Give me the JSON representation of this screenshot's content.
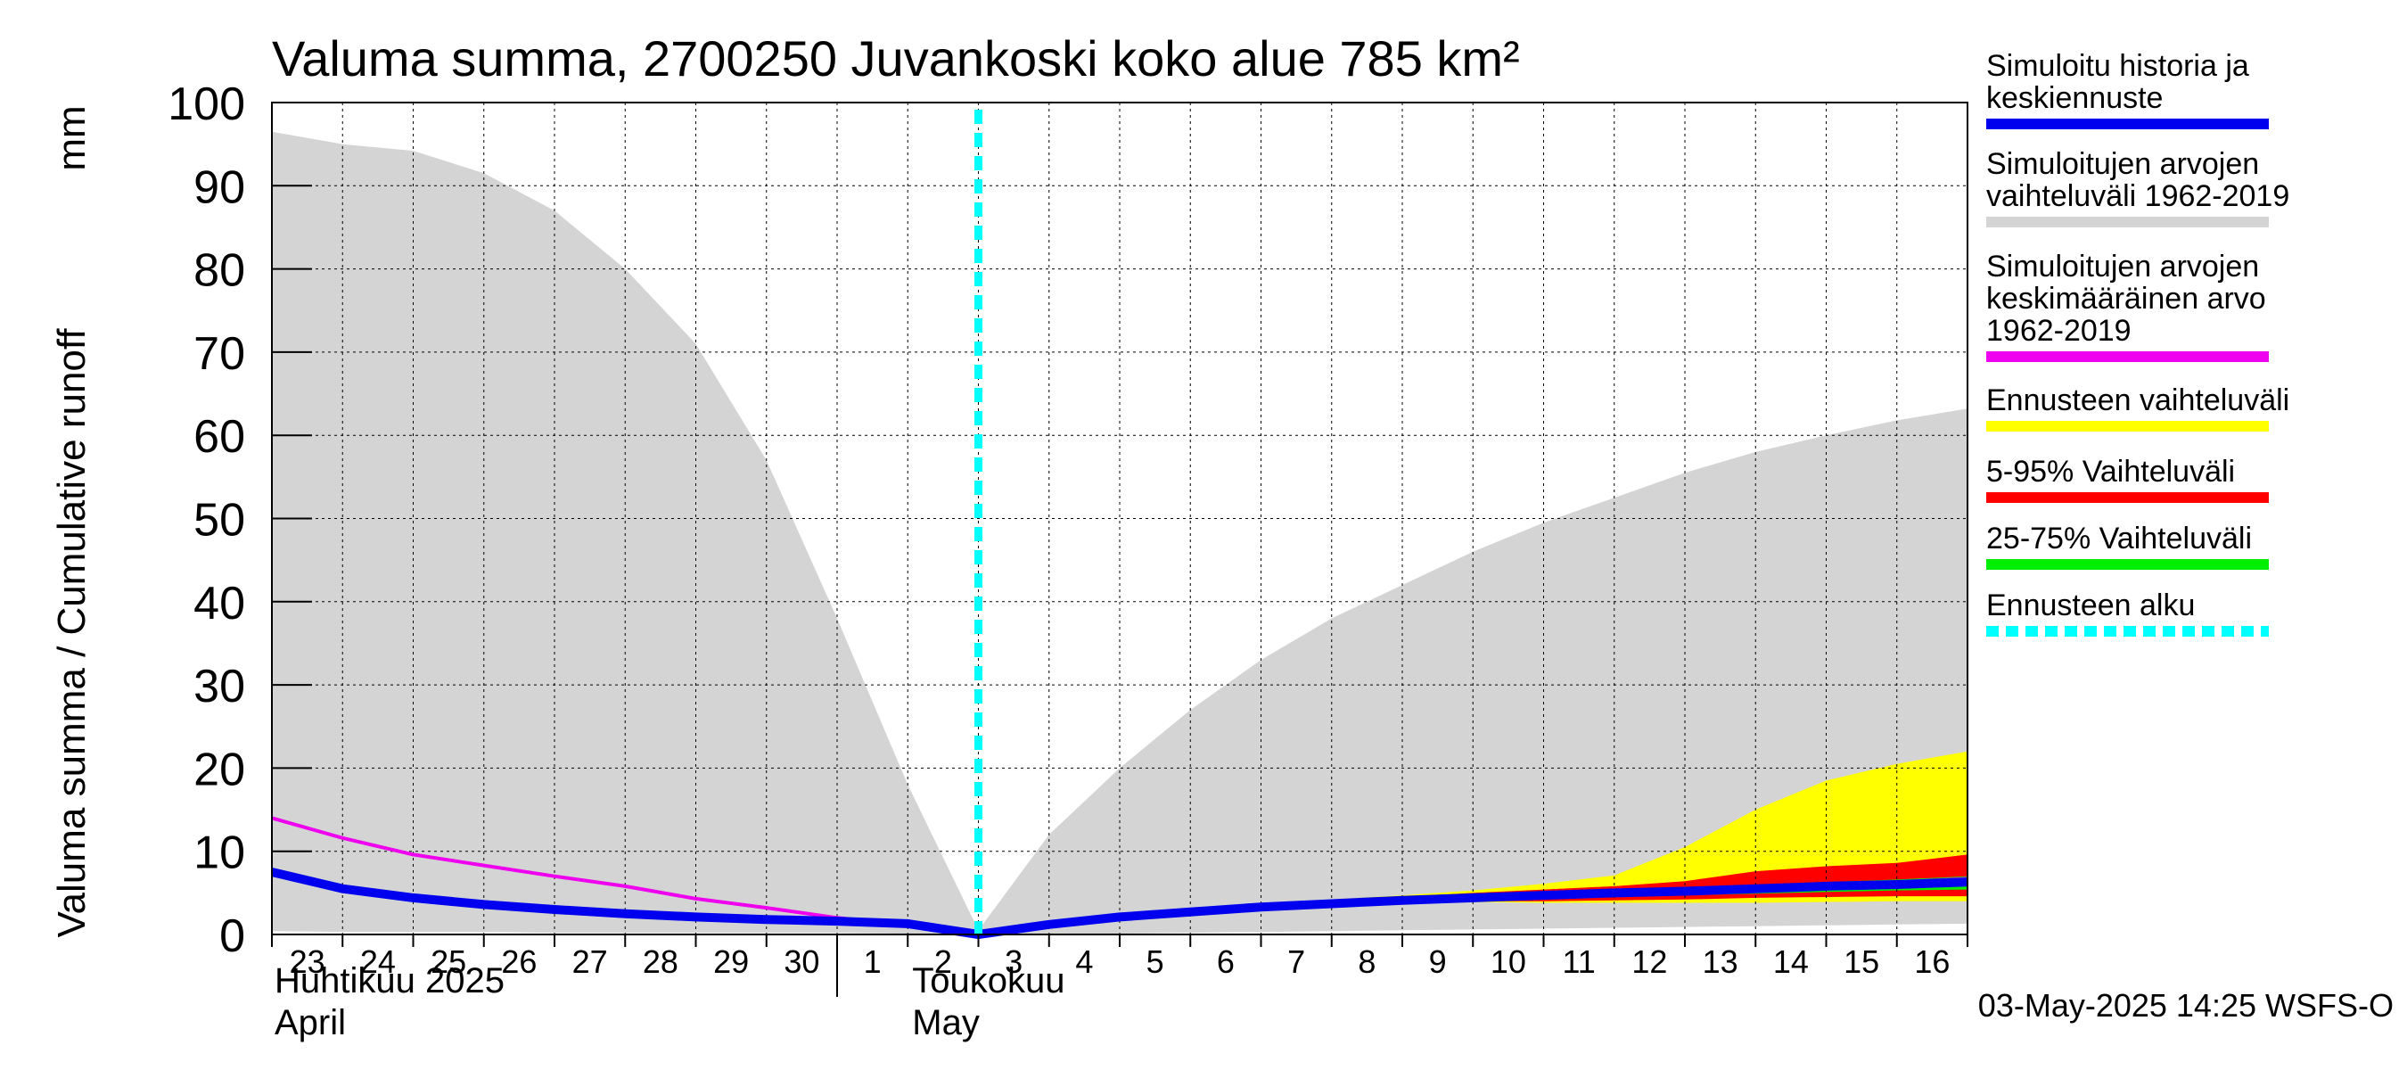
{
  "chart_data": {
    "type": "area",
    "title": "Valuma summa, 2700250 Juvankoski koko alue 785 km²",
    "ylabel": "Valuma summa / Cumulative runoff",
    "yunit": "mm",
    "ylim": [
      0,
      100
    ],
    "yticks": [
      "0",
      "10",
      "20",
      "30",
      "40",
      "50",
      "60",
      "70",
      "80",
      "90",
      "100"
    ],
    "x_start": "2025-04-23",
    "x_end": "2025-05-17",
    "xtick_labels": [
      "23",
      "24",
      "25",
      "26",
      "27",
      "28",
      "29",
      "30",
      "1",
      "2",
      "3",
      "4",
      "5",
      "6",
      "7",
      "8",
      "9",
      "10",
      "11",
      "12",
      "13",
      "14",
      "15",
      "16"
    ],
    "month_labels": [
      {
        "fi": "Huhtikuu  2025",
        "en": "April"
      },
      {
        "fi": "Toukokuu",
        "en": "May"
      }
    ],
    "forecast_start": "2025-05-03",
    "grid": true,
    "legend_position": "right",
    "timestamp": "03-May-2025 14:25 WSFS-O",
    "legend": [
      {
        "label": "Simuloitu historia ja\nkeskiennuste",
        "color": "#0000ee",
        "style": "solid"
      },
      {
        "label": "Simuloitujen arvojen\nvaihteluväli 1962-2019",
        "color": "#d4d4d4",
        "style": "solid"
      },
      {
        "label": "Simuloitujen arvojen\nkeskimääräinen arvo\n   1962-2019",
        "color": "#ee00ee",
        "style": "solid"
      },
      {
        "label": "Ennusteen vaihteluväli",
        "color": "#ffff00",
        "style": "solid"
      },
      {
        "label": "5-95% Vaihteluväli",
        "color": "#ff0000",
        "style": "solid"
      },
      {
        "label": "25-75% Vaihteluväli",
        "color": "#00ee00",
        "style": "solid"
      },
      {
        "label": "Ennusteen alku",
        "color": "#00ffff",
        "style": "dashed"
      }
    ],
    "series": [
      {
        "name": "Simuloitujen arvojen vaihteluväli 1962-2019",
        "kind": "band",
        "color": "#d4d4d4",
        "x": [
          "2025-04-23",
          "2025-04-24",
          "2025-04-25",
          "2025-04-26",
          "2025-04-27",
          "2025-04-28",
          "2025-04-29",
          "2025-04-30",
          "2025-05-01",
          "2025-05-02",
          "2025-05-03",
          "2025-05-04",
          "2025-05-05",
          "2025-05-06",
          "2025-05-07",
          "2025-05-08",
          "2025-05-09",
          "2025-05-10",
          "2025-05-11",
          "2025-05-12",
          "2025-05-13",
          "2025-05-14",
          "2025-05-15",
          "2025-05-16",
          "2025-05-17"
        ],
        "upper": [
          96.5,
          95,
          94.2,
          91.5,
          87,
          80,
          71,
          57,
          38,
          18,
          0.5,
          12,
          20,
          27,
          33,
          38,
          42,
          46,
          49.5,
          52.5,
          55.5,
          58,
          60,
          61.8,
          63.2
        ],
        "lower": [
          0.4,
          0.3,
          0.3,
          0.3,
          0.2,
          0.2,
          0.2,
          0.2,
          0.2,
          0.1,
          0.0,
          0.0,
          0.1,
          0.2,
          0.3,
          0.4,
          0.5,
          0.6,
          0.7,
          0.8,
          0.9,
          1.0,
          1.1,
          1.2,
          1.3
        ]
      },
      {
        "name": "Ennusteen vaihteluväli",
        "kind": "band",
        "color": "#ffff00",
        "x": [
          "2025-05-03",
          "2025-05-04",
          "2025-05-05",
          "2025-05-06",
          "2025-05-07",
          "2025-05-08",
          "2025-05-09",
          "2025-05-10",
          "2025-05-11",
          "2025-05-12",
          "2025-05-13",
          "2025-05-14",
          "2025-05-15",
          "2025-05-16",
          "2025-05-17"
        ],
        "upper": [
          0.0,
          1.4,
          2.4,
          3.0,
          3.7,
          4.2,
          4.7,
          5.3,
          6.1,
          7.1,
          10.5,
          15.0,
          18.5,
          20.5,
          22.0
        ],
        "lower": [
          0.0,
          1.1,
          1.8,
          2.4,
          3.0,
          3.4,
          3.8,
          3.9,
          3.8,
          3.8,
          3.8,
          3.8,
          3.9,
          4.0,
          4.0
        ]
      },
      {
        "name": "5-95% Vaihteluväli",
        "kind": "band",
        "color": "#ff0000",
        "x": [
          "2025-05-03",
          "2025-05-04",
          "2025-05-05",
          "2025-05-06",
          "2025-05-07",
          "2025-05-08",
          "2025-05-09",
          "2025-05-10",
          "2025-05-11",
          "2025-05-12",
          "2025-05-13",
          "2025-05-14",
          "2025-05-15",
          "2025-05-16",
          "2025-05-17"
        ],
        "upper": [
          0.0,
          1.3,
          2.3,
          2.9,
          3.5,
          4.0,
          4.5,
          5.0,
          5.4,
          5.8,
          6.4,
          7.6,
          8.2,
          8.6,
          9.6
        ],
        "lower": [
          0.0,
          1.1,
          1.9,
          2.5,
          3.1,
          3.5,
          3.9,
          4.0,
          4.0,
          4.1,
          4.2,
          4.4,
          4.5,
          4.6,
          4.6
        ]
      },
      {
        "name": "25-75% Vaihteluväli",
        "kind": "band",
        "color": "#00ee00",
        "x": [
          "2025-05-03",
          "2025-05-04",
          "2025-05-05",
          "2025-05-06",
          "2025-05-07",
          "2025-05-08",
          "2025-05-09",
          "2025-05-10",
          "2025-05-11",
          "2025-05-12",
          "2025-05-13",
          "2025-05-14",
          "2025-05-15",
          "2025-05-16",
          "2025-05-17"
        ],
        "upper": [
          0.0,
          1.2,
          2.2,
          2.8,
          3.4,
          3.8,
          4.3,
          4.7,
          5.0,
          5.3,
          5.6,
          6.0,
          6.3,
          6.6,
          7.0
        ],
        "lower": [
          0.0,
          1.1,
          2.0,
          2.6,
          3.2,
          3.6,
          4.0,
          4.2,
          4.3,
          4.5,
          4.7,
          4.9,
          5.1,
          5.3,
          5.4
        ]
      },
      {
        "name": "Simuloitujen arvojen keskimääräinen arvo 1962-2019",
        "kind": "line",
        "color": "#ee00ee",
        "x": [
          "2025-04-23",
          "2025-04-24",
          "2025-04-25",
          "2025-04-26",
          "2025-04-27",
          "2025-04-28",
          "2025-04-29",
          "2025-04-30",
          "2025-05-01",
          "2025-05-02",
          "2025-05-03",
          "2025-05-04",
          "2025-05-05",
          "2025-05-06",
          "2025-05-07",
          "2025-05-08",
          "2025-05-09",
          "2025-05-10",
          "2025-05-11",
          "2025-05-12",
          "2025-05-13",
          "2025-05-14",
          "2025-05-15",
          "2025-05-16",
          "2025-05-17"
        ],
        "values": [
          14.0,
          11.6,
          9.6,
          8.3,
          7.0,
          5.8,
          4.3,
          3.2,
          2.0,
          1.1,
          0.0,
          1.0,
          1.9,
          2.5,
          3.1,
          3.5,
          3.9,
          4.2,
          4.5,
          4.8,
          5.2,
          5.6,
          6.0,
          6.3,
          6.7
        ]
      },
      {
        "name": "Simuloitu historia ja keskiennuste",
        "kind": "line",
        "color": "#0000ee",
        "x": [
          "2025-04-23",
          "2025-04-24",
          "2025-04-25",
          "2025-04-26",
          "2025-04-27",
          "2025-04-28",
          "2025-04-29",
          "2025-04-30",
          "2025-05-01",
          "2025-05-02",
          "2025-05-03",
          "2025-05-04",
          "2025-05-05",
          "2025-05-06",
          "2025-05-07",
          "2025-05-08",
          "2025-05-09",
          "2025-05-10",
          "2025-05-11",
          "2025-05-12",
          "2025-05-13",
          "2025-05-14",
          "2025-05-15",
          "2025-05-16",
          "2025-05-17"
        ],
        "values": [
          7.5,
          5.5,
          4.4,
          3.6,
          3.0,
          2.5,
          2.1,
          1.8,
          1.6,
          1.3,
          0.0,
          1.2,
          2.1,
          2.7,
          3.3,
          3.7,
          4.1,
          4.4,
          4.7,
          5.0,
          5.2,
          5.5,
          5.8,
          6.0,
          6.3
        ]
      }
    ]
  }
}
